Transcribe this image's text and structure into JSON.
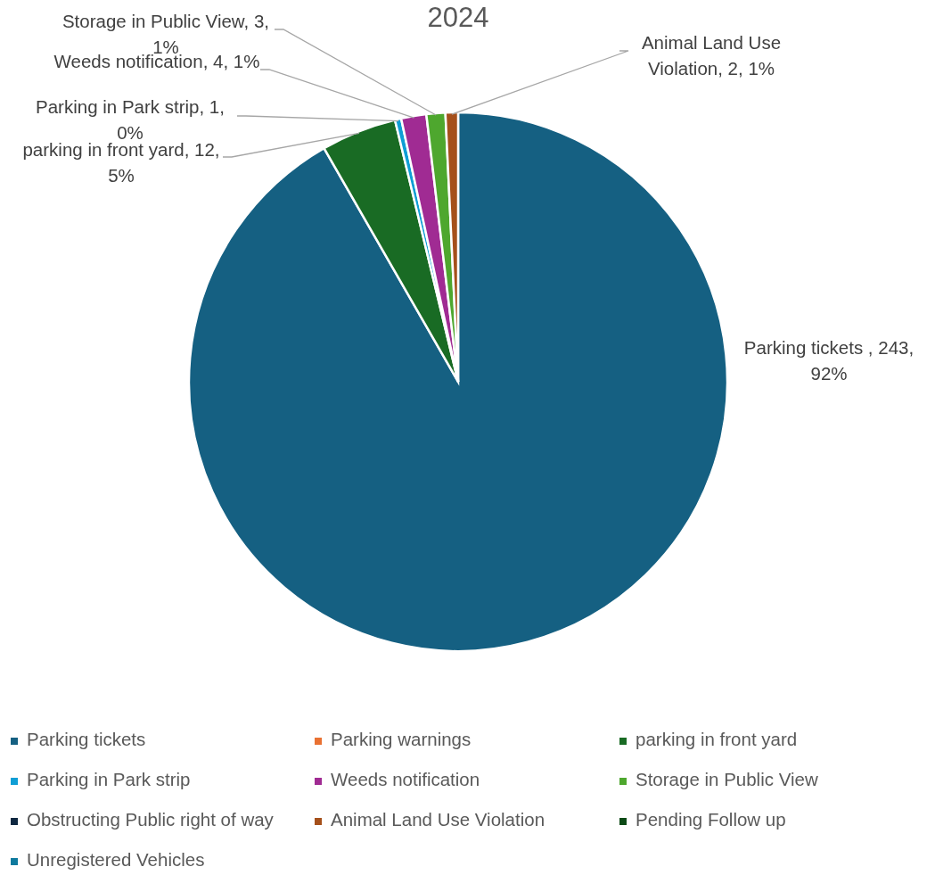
{
  "chart_data": {
    "type": "pie",
    "title": "2024",
    "categories": [
      "Parking tickets",
      "Parking warnings",
      "parking in front yard",
      "Parking in Park strip",
      "Weeds notification",
      "Storage in Public View",
      "Obstructing Public right of way",
      "Animal Land Use Violation",
      "Pending Follow up",
      "Unregistered Vehicles"
    ],
    "values": [
      243,
      0,
      12,
      1,
      4,
      3,
      0,
      2,
      0,
      0
    ],
    "colors": [
      "#156082",
      "#e97132",
      "#196b24",
      "#0f9ed5",
      "#a02b93",
      "#4ea72e",
      "#0e2841",
      "#a5501b",
      "#0c4a16",
      "#0f7a9e"
    ],
    "value_labels": [
      "Parking tickets , 243, 92%",
      null,
      "parking in front yard, 12, 5%",
      "Parking in Park strip, 1, 0%",
      "Weeds notification, 4, 1%",
      "Storage in Public View, 3, 1%",
      null,
      "Animal Land Use Violation, 2, 1%",
      null,
      null
    ],
    "legend": "bottom"
  }
}
